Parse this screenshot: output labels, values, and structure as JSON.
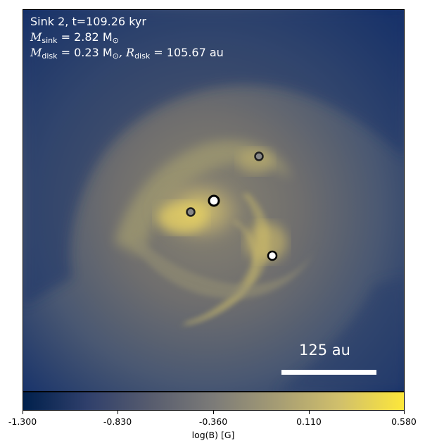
{
  "annotation": {
    "line1": "Sink 2, t=109.26 kyr",
    "msink_symbol": "M",
    "msink_sub": "sink",
    "msink_value": " = 2.82 M",
    "msink_unit_sub": "⊙",
    "mdisk_symbol": "M",
    "mdisk_sub": "disk",
    "mdisk_value": " = 0.23 M",
    "mdisk_unit_sub": "⊙",
    "rdisk_symbol": ", R",
    "rdisk_sub": "disk",
    "rdisk_value": " = 105.67 au"
  },
  "scalebar": {
    "label": "125 au"
  },
  "colorbar": {
    "label": "log(B) [G]",
    "ticks": [
      "-1.300",
      "-0.830",
      "-0.360",
      "0.110",
      "0.580"
    ],
    "range": [
      -1.3,
      0.58
    ],
    "colormap": "cividis",
    "colors": [
      "#00204c",
      "#2f3f6b",
      "#575c6e",
      "#7c7b78",
      "#a59c74",
      "#d1c06b",
      "#fde73a"
    ]
  },
  "sinks": [
    {
      "name": "sink-1",
      "style": "grey"
    },
    {
      "name": "sink-2",
      "style": "dark-core"
    },
    {
      "name": "sink-3",
      "style": "grey"
    },
    {
      "name": "sink-4",
      "style": "white"
    }
  ]
}
